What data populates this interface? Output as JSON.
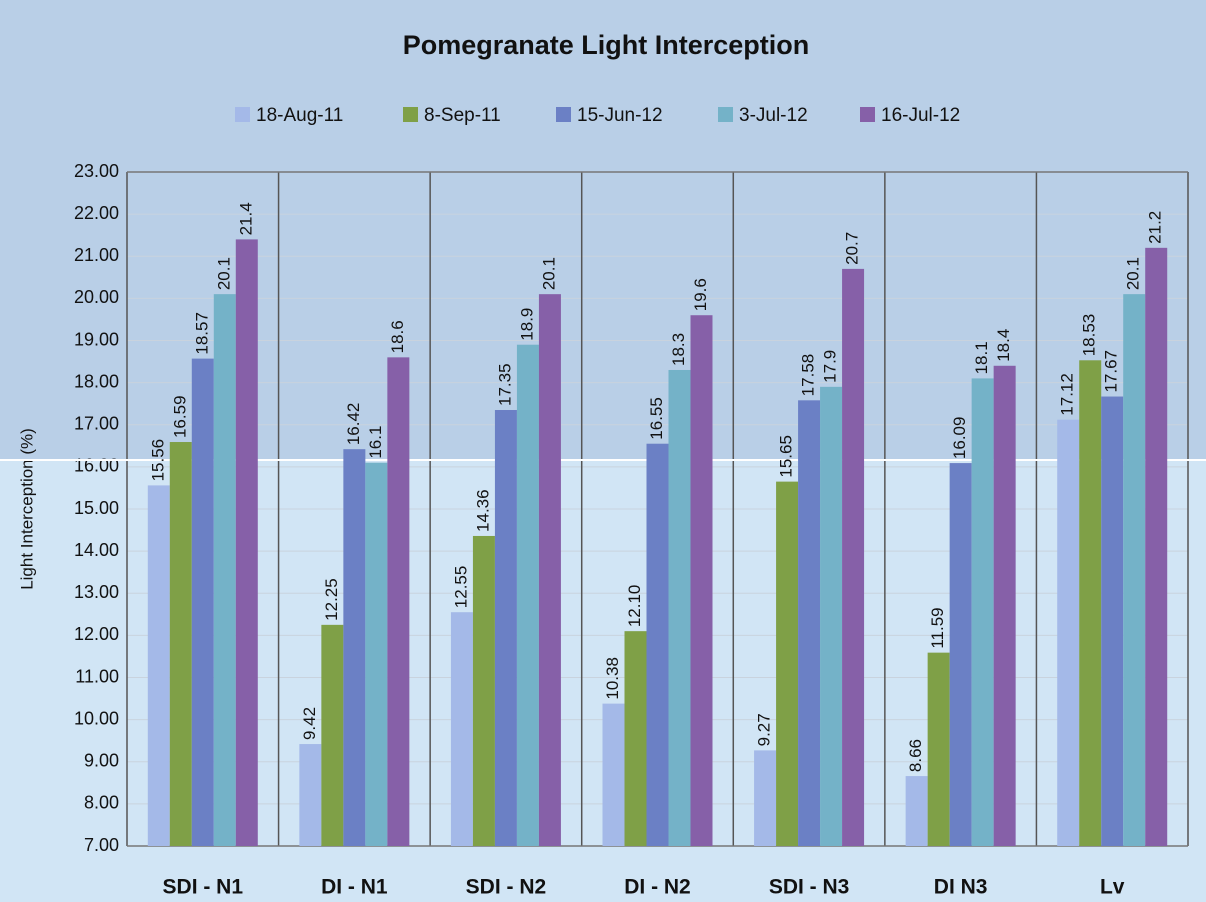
{
  "chart_data": {
    "type": "bar",
    "title": "Pomegranate Light Interception",
    "y_label": "Light Interception (%)",
    "categories": [
      "SDI - N1",
      "DI - N1",
      "SDI - N2",
      "DI - N2",
      "SDI - N3",
      "DI N3",
      "Lv"
    ],
    "series": [
      {
        "name": "18-Aug-11",
        "color": "#a4b9e8",
        "values": [
          15.56,
          9.42,
          12.55,
          10.38,
          9.27,
          8.66,
          17.12
        ]
      },
      {
        "name": "8-Sep-11",
        "color": "#7fa047",
        "values": [
          16.59,
          12.25,
          14.36,
          12.1,
          15.65,
          11.59,
          18.53
        ],
        "value_labels": [
          "16.59",
          "12.25",
          "14.36",
          "12.10",
          "15.65",
          "11.59",
          "18.53"
        ]
      },
      {
        "name": "15-Jun-12",
        "color": "#6b80c5",
        "values": [
          18.57,
          16.42,
          17.35,
          16.55,
          17.58,
          16.09,
          17.67
        ]
      },
      {
        "name": "3-Jul-12",
        "color": "#74b2c8",
        "values": [
          20.1,
          16.1,
          18.9,
          18.3,
          17.9,
          18.1,
          20.1
        ]
      },
      {
        "name": "16-Jul-12",
        "color": "#8660a8",
        "values": [
          21.4,
          18.6,
          20.1,
          19.6,
          20.7,
          18.4,
          21.2
        ]
      }
    ],
    "ylim": [
      7,
      23
    ],
    "yticks": [
      {
        "value": 7,
        "label": "7.00"
      },
      {
        "value": 8,
        "label": "8.00"
      },
      {
        "value": 9,
        "label": "9.00"
      },
      {
        "value": 10,
        "label": "10.00"
      },
      {
        "value": 11,
        "label": "11.00"
      },
      {
        "value": 12,
        "label": "12.00"
      },
      {
        "value": 13,
        "label": "13.00"
      },
      {
        "value": 14,
        "label": "14.00"
      },
      {
        "value": 15,
        "label": "15.00"
      },
      {
        "value": 16,
        "label": "16.00"
      },
      {
        "value": 17,
        "label": "17.00"
      },
      {
        "value": 18,
        "label": "18.00"
      },
      {
        "value": 19,
        "label": "19.00"
      },
      {
        "value": 20,
        "label": "20.00"
      },
      {
        "value": 21,
        "label": "21.00"
      },
      {
        "value": 22,
        "label": "22.00"
      },
      {
        "value": 23,
        "label": "23.00"
      }
    ],
    "grid": true,
    "legend": "top"
  }
}
